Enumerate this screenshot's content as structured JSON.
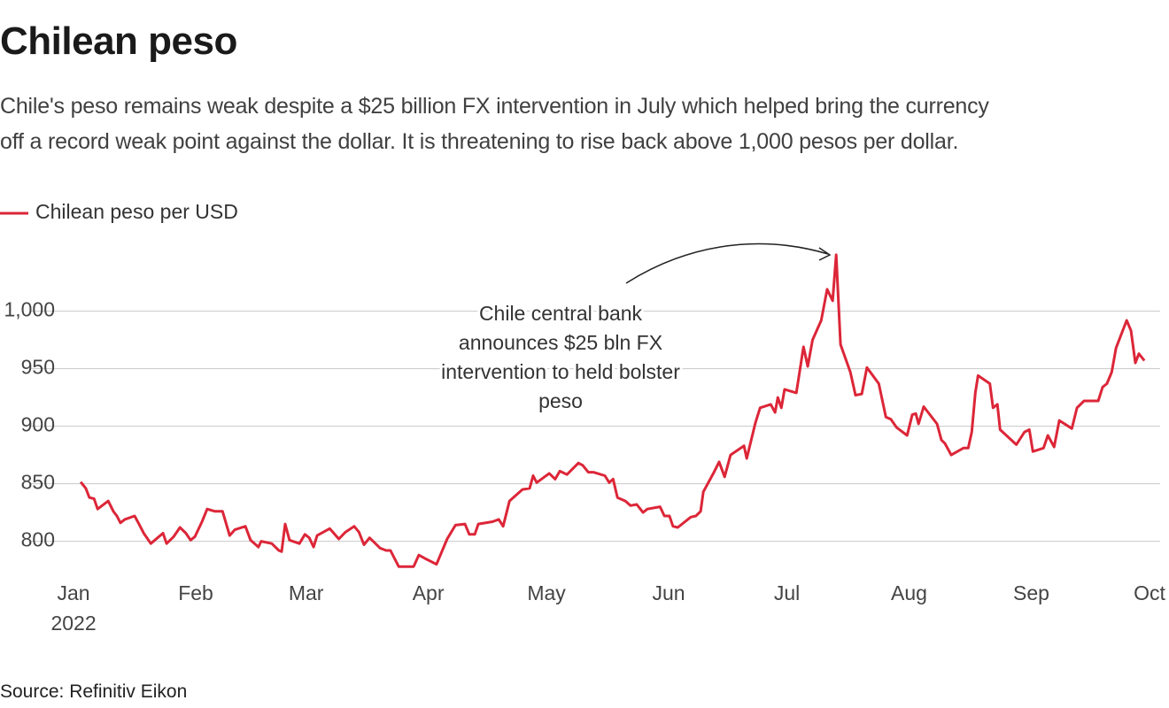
{
  "chart_data": {
    "type": "line",
    "title": "Chilean peso",
    "subtitle": [
      "Chile's peso remains weak despite a $25 billion FX intervention in July which helped bring the currency",
      "off a record weak point against the dollar. It is threatening to rise back above 1,000 pesos per dollar."
    ],
    "source": "Source: Refinitiv Eikon",
    "annotation": [
      "Chile central bank",
      "announces $25 bln FX",
      "intervention to held bolster",
      "peso"
    ],
    "x_year_label": "2022",
    "xlim": [
      -10.8,
      275.7
    ],
    "xticks": [
      {
        "value": 0,
        "label": "Jan"
      },
      {
        "value": 31,
        "label": "Feb"
      },
      {
        "value": 59,
        "label": "Mar"
      },
      {
        "value": 90,
        "label": "Apr"
      },
      {
        "value": 120,
        "label": "May"
      },
      {
        "value": 151,
        "label": "Jun"
      },
      {
        "value": 181,
        "label": "Jul"
      },
      {
        "value": 212,
        "label": "Aug"
      },
      {
        "value": 243,
        "label": "Sep"
      },
      {
        "value": 273,
        "label": "Oct"
      }
    ],
    "ylim": [
      772,
      1052
    ],
    "yticks": [
      800,
      850,
      900,
      950,
      {
        "value": 1000,
        "label": "1,000"
      }
    ],
    "grid": true,
    "legend": "top-left",
    "x": [
      1.8,
      3.1,
      4,
      5.2,
      6.1,
      8.8,
      10.1,
      11,
      11.9,
      13,
      15.5,
      16.6,
      17.8,
      19.6,
      21.3,
      22.7,
      23.6,
      25.4,
      27,
      28.5,
      29.7,
      30.8,
      32.6,
      33.9,
      35.9,
      37.8,
      39.6,
      40.9,
      43.6,
      44.9,
      46.9,
      47.6,
      50.3,
      52.1,
      52.8,
      53.7,
      54.8,
      57.3,
      58.7,
      59.8,
      60.9,
      61.8,
      65,
      67.3,
      69,
      71.2,
      72.4,
      73.7,
      75.1,
      77.8,
      79.3,
      80.4,
      82.5,
      84.7,
      86.3,
      87.6,
      89.2,
      92.1,
      94.8,
      96.9,
      99.3,
      100.4,
      101.8,
      102.7,
      106.3,
      107.9,
      109,
      110.6,
      113.9,
      115.7,
      116.6,
      117.5,
      120.7,
      122.2,
      123.4,
      125.2,
      128.1,
      129.2,
      130.6,
      131.9,
      134.8,
      135.9,
      136.9,
      138,
      140,
      141.3,
      142.9,
      144.5,
      145.6,
      148.8,
      149.9,
      151.2,
      152.1,
      153.3,
      156.6,
      157.9,
      159.1,
      159.8,
      162.5,
      163.8,
      165.2,
      166.7,
      170.1,
      170.8,
      173,
      174.2,
      176.9,
      178,
      178.7,
      179.6,
      180.4,
      183.4,
      185.2,
      186.3,
      187.5,
      189.7,
      191.2,
      192.6,
      193.5,
      194.6,
      197.1,
      198.4,
      200,
      201.3,
      204.3,
      206.1,
      207.4,
      208.8,
      211.5,
      212.8,
      213.7,
      214.4,
      215.7,
      219.1,
      220.2,
      221.1,
      222.7,
      225.8,
      227,
      227.9,
      228.8,
      229.5,
      232.5,
      233.3,
      234.4,
      235.1,
      239.2,
      241.3,
      242.5,
      243.4,
      246.1,
      247.2,
      248.8,
      250.1,
      253.3,
      254.6,
      256.4,
      258.2,
      260,
      261.1,
      262.2,
      263.4,
      264.5,
      267.2,
      268.3,
      269.4,
      270.3,
      271.7
    ],
    "series": [
      {
        "name": "Chilean peso per USD",
        "color": "#dc2638",
        "values": [
          851.5,
          846,
          838,
          837,
          828,
          835,
          826,
          822,
          816,
          819,
          822,
          815,
          807,
          798,
          803,
          807,
          798,
          804,
          812,
          807,
          801,
          804,
          817,
          828,
          826,
          826,
          805,
          810,
          813,
          801,
          795,
          800,
          798,
          792,
          791,
          815,
          801,
          798,
          806,
          803,
          795,
          805,
          811,
          802,
          808,
          813,
          808,
          797,
          803,
          794,
          792,
          792,
          778,
          778,
          778,
          788,
          785,
          780,
          802,
          814,
          815,
          806,
          806,
          815,
          817,
          819,
          813,
          835,
          845,
          846,
          857,
          851,
          859,
          854,
          861,
          858,
          868,
          866,
          860,
          860,
          857,
          851,
          854,
          838,
          835,
          831,
          832,
          825,
          828,
          830,
          822,
          822,
          813,
          812,
          821,
          822,
          826,
          843,
          860,
          869,
          856,
          875,
          883,
          872,
          903,
          916,
          919,
          912,
          925,
          916,
          932,
          929,
          969,
          952,
          975,
          992,
          1019,
          1009,
          1049,
          971,
          947,
          927,
          928,
          951,
          937,
          908,
          906,
          899,
          892,
          910,
          911,
          902,
          917,
          902,
          888,
          885,
          875,
          881,
          881,
          895,
          929,
          944,
          937,
          916,
          919,
          897,
          884,
          895,
          897,
          878,
          881,
          892,
          882,
          905,
          898,
          916,
          922,
          922,
          922,
          934,
          937,
          947,
          968,
          992,
          983,
          955,
          963,
          957
        ]
      }
    ]
  }
}
